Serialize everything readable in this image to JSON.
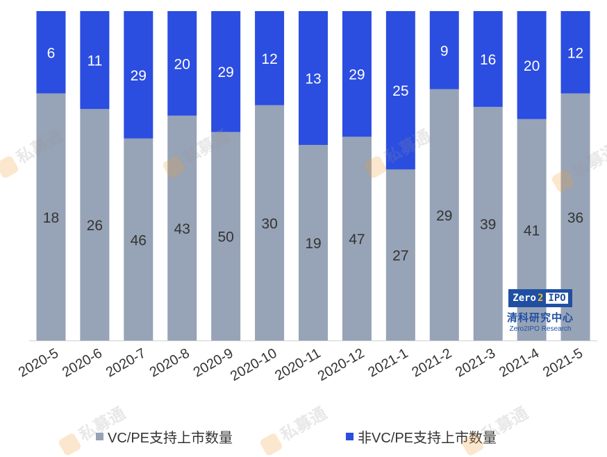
{
  "chart_data": {
    "type": "bar",
    "stacked": true,
    "categories": [
      "2020-5",
      "2020-6",
      "2020-7",
      "2020-8",
      "2020-9",
      "2020-10",
      "2020-11",
      "2020-12",
      "2021-1",
      "2021-2",
      "2021-3",
      "2021-4",
      "2021-5"
    ],
    "series": [
      {
        "name": "VC/PE支持上市数量",
        "color": "#97a3b6",
        "values": [
          18,
          26,
          46,
          43,
          50,
          30,
          19,
          47,
          27,
          29,
          39,
          41,
          36
        ]
      },
      {
        "name": "非VC/PE支持上市数量",
        "color": "#2b4de0",
        "values": [
          6,
          11,
          29,
          20,
          29,
          12,
          13,
          29,
          25,
          9,
          16,
          20,
          12
        ]
      }
    ],
    "normalized": true,
    "ylim": [
      0,
      100
    ],
    "title": "",
    "xlabel": "",
    "ylabel": "",
    "legend_position": "bottom"
  },
  "logo": {
    "zero": "Zero",
    "two": "2",
    "ipo": "IPO",
    "cn": "清科研究中心",
    "en": "Zero2IPO Research"
  },
  "watermark": {
    "text": "私募通"
  }
}
